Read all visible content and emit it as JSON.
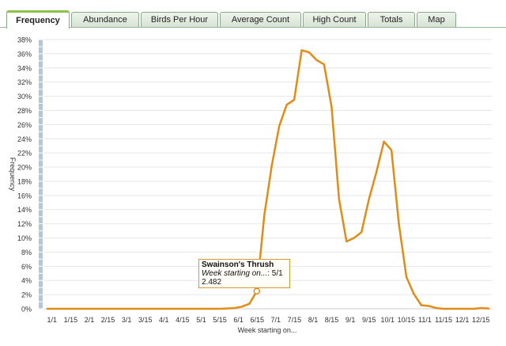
{
  "tabs": [
    {
      "label": "Frequency",
      "active": true
    },
    {
      "label": "Abundance",
      "active": false
    },
    {
      "label": "Birds Per Hour",
      "active": false
    },
    {
      "label": "Average Count",
      "active": false
    },
    {
      "label": "High Count",
      "active": false
    },
    {
      "label": "Totals",
      "active": false
    },
    {
      "label": "Map",
      "active": false
    }
  ],
  "tooltip": {
    "species": "Swainson's Thrush",
    "week_label": "Week starting on...",
    "week_value": "5/1",
    "value": "2.482"
  },
  "colors": {
    "line": "#e08c16",
    "grid": "#e6e6e6",
    "axis_band": "#b3c6dc",
    "tooltip_border": "#d99a2b"
  },
  "chart_data": {
    "type": "line",
    "title": "",
    "xlabel": "Week starting on...",
    "ylabel": "Frequency",
    "ylim": [
      0,
      38
    ],
    "y_ticks": [
      "0%",
      "2%",
      "4%",
      "6%",
      "8%",
      "10%",
      "12%",
      "14%",
      "16%",
      "18%",
      "20%",
      "22%",
      "24%",
      "26%",
      "28%",
      "30%",
      "32%",
      "34%",
      "36%",
      "38%"
    ],
    "y_tick_values": [
      0,
      2,
      4,
      6,
      8,
      10,
      12,
      14,
      16,
      18,
      20,
      22,
      24,
      26,
      28,
      30,
      32,
      34,
      36,
      38
    ],
    "x_tick_labels": [
      "1/1",
      "1/15",
      "2/1",
      "2/15",
      "3/1",
      "3/15",
      "4/1",
      "4/15",
      "5/1",
      "5/15",
      "6/1",
      "6/15",
      "7/1",
      "7/15",
      "8/1",
      "8/15",
      "9/1",
      "9/15",
      "10/1",
      "10/15",
      "11/1",
      "11/15",
      "12/1",
      "12/15"
    ],
    "series": [
      {
        "name": "Swainson's Thrush",
        "values": [
          0,
          0,
          0,
          0,
          0,
          0,
          0,
          0,
          0,
          0,
          0,
          0,
          0,
          0,
          0,
          0,
          0,
          0,
          0,
          0,
          0,
          0,
          0,
          0,
          0.05,
          0.1,
          0.3,
          0.7,
          2.482,
          13.2,
          20.2,
          25.8,
          28.8,
          29.5,
          36.5,
          36.2,
          35.1,
          34.5,
          28.5,
          15.5,
          9.5,
          10,
          10.8,
          15.5,
          19.3,
          23.6,
          22.4,
          12,
          4.5,
          2.1,
          0.5,
          0.4,
          0.1,
          0,
          0,
          0,
          0,
          0,
          0.1,
          0.05
        ]
      }
    ],
    "highlight": {
      "index": 28,
      "value": 2.482
    }
  }
}
